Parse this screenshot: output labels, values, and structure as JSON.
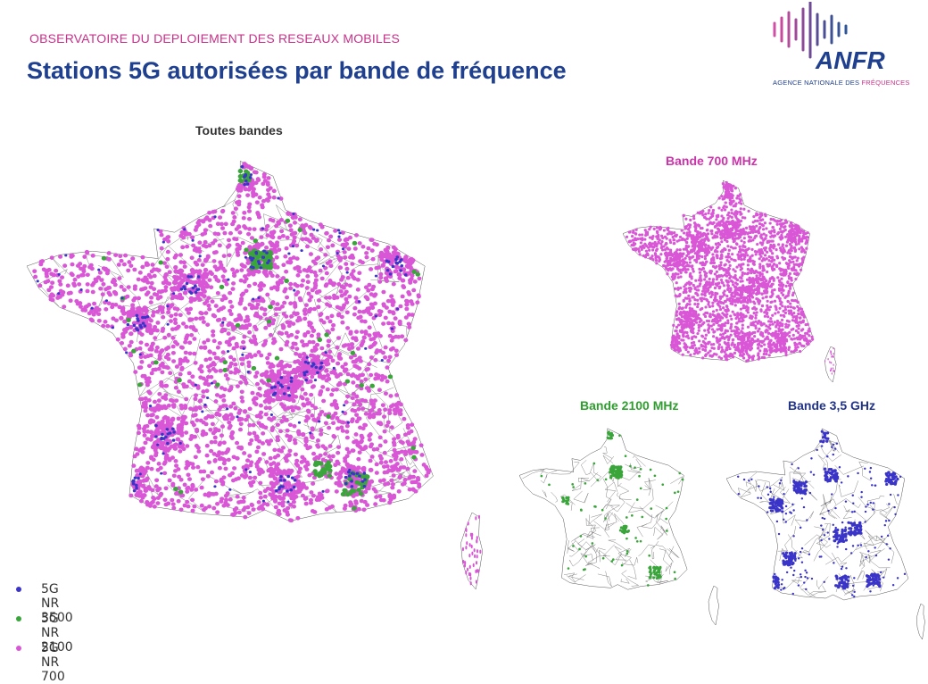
{
  "header": {
    "kicker": "OBSERVATOIRE DU DEPLOIEMENT DES RESEAUX MOBILES",
    "title": "Stations 5G autorisées par bande de fréquence"
  },
  "logo": {
    "name": "ANFR",
    "subtitle_prefix": "AGENCE NATIONALE DES ",
    "subtitle_highlight": "FRÉQUENCES"
  },
  "maps": {
    "all": {
      "title": "Toutes bandes"
    },
    "band_700": {
      "title": "Bande 700 MHz",
      "color": "#d957d6"
    },
    "band_2100": {
      "title": "Bande 2100 MHz",
      "color": "#3aa53a"
    },
    "band_3500": {
      "title": "Bande 3,5 GHz",
      "color": "#3a35c8"
    }
  },
  "legend": [
    {
      "label": "5G NR 3500",
      "color": "#3a35c8"
    },
    {
      "label": "5G NR 2100",
      "color": "#3aa53a"
    },
    {
      "label": "5G NR 700",
      "color": "#d957d6"
    }
  ]
}
